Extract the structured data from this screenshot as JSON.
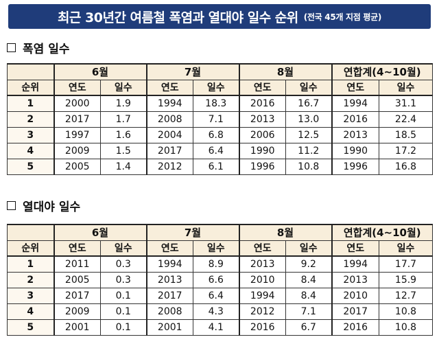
{
  "title": {
    "main": "최근 30년간 여름철 폭염과 열대야 일수 순위",
    "sub": "(전국 45개 지점 평균)"
  },
  "sections": [
    {
      "heading": "폭염 일수",
      "months": [
        "6월",
        "7월",
        "8월",
        "연합계(4~10월)"
      ],
      "col_headers": {
        "rank": "순위",
        "year": "연도",
        "days": "일수"
      },
      "rows": [
        {
          "rank": "1",
          "cells": [
            [
              "2000",
              "1.9"
            ],
            [
              "1994",
              "18.3"
            ],
            [
              "2016",
              "16.7"
            ],
            [
              "1994",
              "31.1"
            ]
          ]
        },
        {
          "rank": "2",
          "cells": [
            [
              "2017",
              "1.7"
            ],
            [
              "2008",
              "7.1"
            ],
            [
              "2013",
              "13.0"
            ],
            [
              "2016",
              "22.4"
            ]
          ]
        },
        {
          "rank": "3",
          "cells": [
            [
              "1997",
              "1.6"
            ],
            [
              "2004",
              "6.8"
            ],
            [
              "2006",
              "12.5"
            ],
            [
              "2013",
              "18.5"
            ]
          ]
        },
        {
          "rank": "4",
          "cells": [
            [
              "2009",
              "1.5"
            ],
            [
              "2017",
              "6.4"
            ],
            [
              "1990",
              "11.2"
            ],
            [
              "1990",
              "17.2"
            ]
          ]
        },
        {
          "rank": "5",
          "cells": [
            [
              "2005",
              "1.4"
            ],
            [
              "2012",
              "6.1"
            ],
            [
              "1996",
              "10.8"
            ],
            [
              "1996",
              "16.8"
            ]
          ]
        }
      ]
    },
    {
      "heading": "열대야 일수",
      "months": [
        "6월",
        "7월",
        "8월",
        "연합계(4~10월)"
      ],
      "col_headers": {
        "rank": "순위",
        "year": "연도",
        "days": "일수"
      },
      "rows": [
        {
          "rank": "1",
          "cells": [
            [
              "2011",
              "0.3"
            ],
            [
              "1994",
              "8.9"
            ],
            [
              "2013",
              "9.2"
            ],
            [
              "1994",
              "17.7"
            ]
          ]
        },
        {
          "rank": "2",
          "cells": [
            [
              "2005",
              "0.3"
            ],
            [
              "2013",
              "6.6"
            ],
            [
              "2010",
              "8.4"
            ],
            [
              "2013",
              "15.9"
            ]
          ]
        },
        {
          "rank": "3",
          "cells": [
            [
              "2017",
              "0.1"
            ],
            [
              "2017",
              "6.4"
            ],
            [
              "1994",
              "8.4"
            ],
            [
              "2010",
              "12.7"
            ]
          ]
        },
        {
          "rank": "4",
          "cells": [
            [
              "2009",
              "0.1"
            ],
            [
              "2008",
              "4.3"
            ],
            [
              "2012",
              "7.1"
            ],
            [
              "2017",
              "10.8"
            ]
          ]
        },
        {
          "rank": "5",
          "cells": [
            [
              "2001",
              "0.1"
            ],
            [
              "2001",
              "4.1"
            ],
            [
              "2016",
              "6.7"
            ],
            [
              "2016",
              "10.8"
            ]
          ]
        }
      ]
    }
  ],
  "colors": {
    "banner": "#1f3c7a",
    "header_bg": "#f8eedb",
    "border": "#333333"
  }
}
